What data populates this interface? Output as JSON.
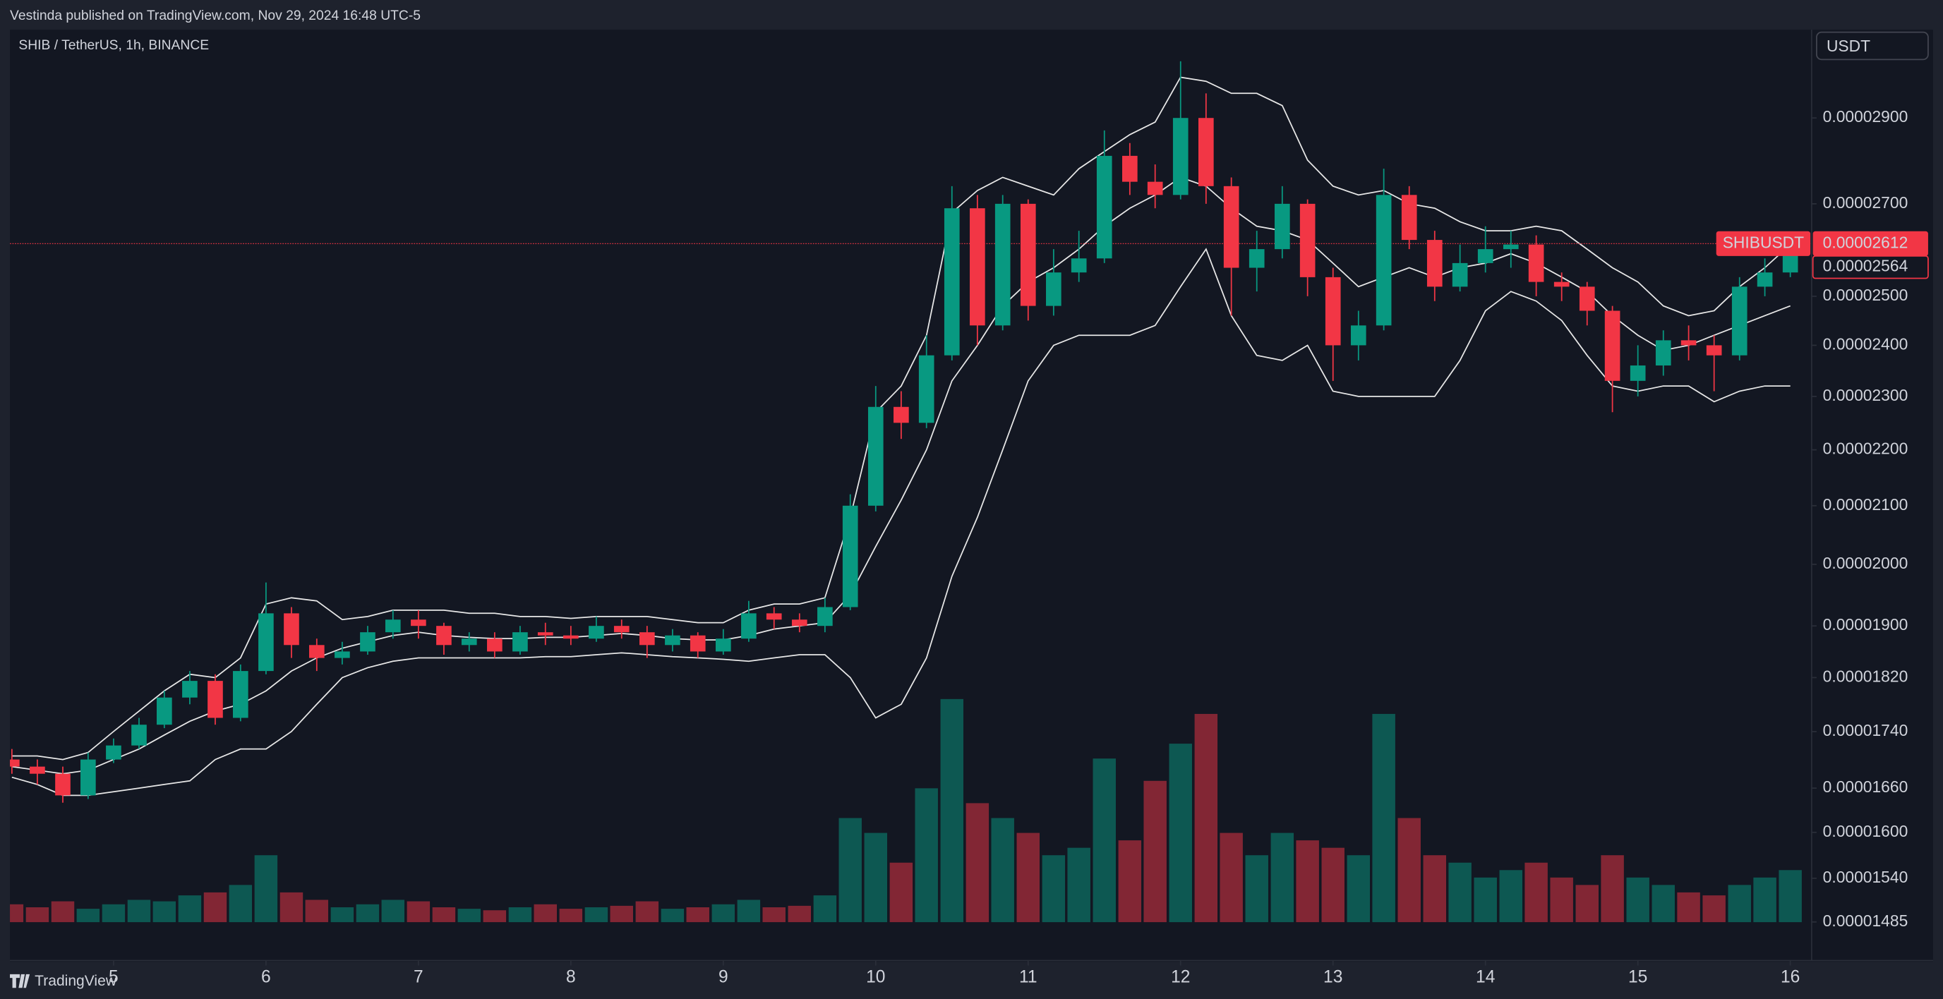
{
  "publisher": "Vestinda published on TradingView.com, Nov 29, 2024 16:48 UTC-5",
  "symbol_info": "SHIB / TetherUS, 1h, BINANCE",
  "currency": "USDT",
  "footer": "TradingView",
  "chart_data": {
    "type": "candlestick",
    "log_scale": true,
    "up_color": "#089981",
    "down_color": "#f23645",
    "band_color": "#e8e8e8",
    "symbol_label": "SHIBUSDT",
    "price_labels": [
      2.612e-05,
      2.564e-05
    ],
    "x": [
      4.333,
      4.5,
      4.667,
      4.833,
      5,
      5.167,
      5.333,
      5.5,
      5.667,
      5.833,
      6,
      6.167,
      6.333,
      6.5,
      6.667,
      6.833,
      7,
      7.167,
      7.333,
      7.5,
      7.667,
      7.833,
      8,
      8.167,
      8.333,
      8.5,
      8.667,
      8.833,
      9,
      9.167,
      9.333,
      9.5,
      9.667,
      9.833,
      10,
      10.167,
      10.333,
      10.5,
      10.667,
      10.833,
      11,
      11.167,
      11.333,
      11.5,
      11.667,
      11.833,
      12,
      12.167,
      12.333,
      12.5,
      12.667,
      12.833,
      13,
      13.167,
      13.333,
      13.5,
      13.667,
      13.833,
      14,
      14.167,
      14.333,
      14.5,
      14.667,
      14.833,
      15,
      15.167,
      15.333,
      15.5,
      15.667,
      15.833,
      16
    ],
    "open": [
      1.7e-05,
      1.69e-05,
      1.68e-05,
      1.65e-05,
      1.7e-05,
      1.72e-05,
      1.75e-05,
      1.79e-05,
      1.815e-05,
      1.76e-05,
      1.83e-05,
      1.92e-05,
      1.87e-05,
      1.85e-05,
      1.86e-05,
      1.89e-05,
      1.91e-05,
      1.9e-05,
      1.87e-05,
      1.88e-05,
      1.86e-05,
      1.89e-05,
      1.885e-05,
      1.88e-05,
      1.9e-05,
      1.89e-05,
      1.87e-05,
      1.885e-05,
      1.86e-05,
      1.88e-05,
      1.92e-05,
      1.91e-05,
      1.9e-05,
      1.93e-05,
      2.1e-05,
      2.28e-05,
      2.25e-05,
      2.38e-05,
      2.69e-05,
      2.44e-05,
      2.7e-05,
      2.48e-05,
      2.55e-05,
      2.58e-05,
      2.81e-05,
      2.75e-05,
      2.72e-05,
      2.9e-05,
      2.74e-05,
      2.56e-05,
      2.6e-05,
      2.7e-05,
      2.54e-05,
      2.4e-05,
      2.44e-05,
      2.72e-05,
      2.62e-05,
      2.52e-05,
      2.57e-05,
      2.6e-05,
      2.61e-05,
      2.53e-05,
      2.52e-05,
      2.47e-05,
      2.33e-05,
      2.36e-05,
      2.41e-05,
      2.4e-05,
      2.38e-05,
      2.52e-05,
      2.55e-05
    ],
    "high": [
      1.715e-05,
      1.7e-05,
      1.69e-05,
      1.71e-05,
      1.73e-05,
      1.76e-05,
      1.8e-05,
      1.83e-05,
      1.825e-05,
      1.84e-05,
      1.97e-05,
      1.93e-05,
      1.88e-05,
      1.875e-05,
      1.9e-05,
      1.925e-05,
      1.925e-05,
      1.905e-05,
      1.89e-05,
      1.89e-05,
      1.9e-05,
      1.905e-05,
      1.9e-05,
      1.915e-05,
      1.91e-05,
      1.9e-05,
      1.895e-05,
      1.89e-05,
      1.895e-05,
      1.94e-05,
      1.93e-05,
      1.92e-05,
      1.945e-05,
      2.12e-05,
      2.32e-05,
      2.31e-05,
      2.42e-05,
      2.74e-05,
      2.72e-05,
      2.72e-05,
      2.71e-05,
      2.6e-05,
      2.64e-05,
      2.87e-05,
      2.84e-05,
      2.79e-05,
      3.04e-05,
      2.96e-05,
      2.76e-05,
      2.64e-05,
      2.74e-05,
      2.71e-05,
      2.56e-05,
      2.47e-05,
      2.78e-05,
      2.74e-05,
      2.64e-05,
      2.61e-05,
      2.65e-05,
      2.64e-05,
      2.63e-05,
      2.55e-05,
      2.53e-05,
      2.48e-05,
      2.4e-05,
      2.43e-05,
      2.44e-05,
      2.42e-05,
      2.54e-05,
      2.58e-05,
      2.63e-05
    ],
    "low": [
      1.68e-05,
      1.665e-05,
      1.64e-05,
      1.645e-05,
      1.695e-05,
      1.715e-05,
      1.745e-05,
      1.78e-05,
      1.75e-05,
      1.755e-05,
      1.825e-05,
      1.85e-05,
      1.83e-05,
      1.84e-05,
      1.855e-05,
      1.88e-05,
      1.88e-05,
      1.855e-05,
      1.86e-05,
      1.85e-05,
      1.855e-05,
      1.87e-05,
      1.87e-05,
      1.875e-05,
      1.88e-05,
      1.85e-05,
      1.86e-05,
      1.85e-05,
      1.855e-05,
      1.875e-05,
      1.895e-05,
      1.89e-05,
      1.89e-05,
      1.925e-05,
      2.09e-05,
      2.22e-05,
      2.24e-05,
      2.37e-05,
      2.4e-05,
      2.43e-05,
      2.45e-05,
      2.46e-05,
      2.53e-05,
      2.57e-05,
      2.72e-05,
      2.69e-05,
      2.71e-05,
      2.7e-05,
      2.46e-05,
      2.51e-05,
      2.58e-05,
      2.5e-05,
      2.33e-05,
      2.37e-05,
      2.43e-05,
      2.6e-05,
      2.49e-05,
      2.51e-05,
      2.55e-05,
      2.56e-05,
      2.5e-05,
      2.49e-05,
      2.44e-05,
      2.27e-05,
      2.3e-05,
      2.34e-05,
      2.37e-05,
      2.31e-05,
      2.37e-05,
      2.5e-05,
      2.54e-05
    ],
    "close": [
      1.69e-05,
      1.68e-05,
      1.65e-05,
      1.7e-05,
      1.72e-05,
      1.75e-05,
      1.79e-05,
      1.815e-05,
      1.76e-05,
      1.83e-05,
      1.92e-05,
      1.87e-05,
      1.85e-05,
      1.86e-05,
      1.89e-05,
      1.91e-05,
      1.9e-05,
      1.87e-05,
      1.88e-05,
      1.86e-05,
      1.89e-05,
      1.885e-05,
      1.88e-05,
      1.9e-05,
      1.89e-05,
      1.87e-05,
      1.885e-05,
      1.86e-05,
      1.88e-05,
      1.92e-05,
      1.91e-05,
      1.9e-05,
      1.93e-05,
      2.1e-05,
      2.28e-05,
      2.25e-05,
      2.38e-05,
      2.69e-05,
      2.44e-05,
      2.7e-05,
      2.48e-05,
      2.55e-05,
      2.58e-05,
      2.81e-05,
      2.75e-05,
      2.72e-05,
      2.9e-05,
      2.74e-05,
      2.56e-05,
      2.6e-05,
      2.7e-05,
      2.54e-05,
      2.4e-05,
      2.44e-05,
      2.72e-05,
      2.62e-05,
      2.52e-05,
      2.57e-05,
      2.6e-05,
      2.61e-05,
      2.53e-05,
      2.52e-05,
      2.47e-05,
      2.33e-05,
      2.36e-05,
      2.41e-05,
      2.4e-05,
      2.38e-05,
      2.52e-05,
      2.55e-05,
      2.612e-05
    ],
    "volume": [
      12,
      10,
      14,
      9,
      12,
      15,
      14,
      18,
      20,
      25,
      45,
      20,
      15,
      10,
      12,
      15,
      14,
      10,
      9,
      8,
      10,
      12,
      9,
      10,
      11,
      14,
      9,
      10,
      12,
      15,
      10,
      11,
      18,
      70,
      60,
      40,
      90,
      150,
      80,
      70,
      60,
      45,
      50,
      110,
      55,
      95,
      120,
      140,
      60,
      45,
      60,
      55,
      50,
      45,
      140,
      70,
      45,
      40,
      30,
      35,
      40,
      30,
      25,
      45,
      30,
      25,
      20,
      18,
      25,
      30,
      35
    ],
    "bands": {
      "upper": [
        1.705e-05,
        1.705e-05,
        1.7e-05,
        1.71e-05,
        1.74e-05,
        1.77e-05,
        1.8e-05,
        1.825e-05,
        1.82e-05,
        1.85e-05,
        1.935e-05,
        1.945e-05,
        1.94e-05,
        1.91e-05,
        1.915e-05,
        1.925e-05,
        1.925e-05,
        1.925e-05,
        1.92e-05,
        1.92e-05,
        1.915e-05,
        1.915e-05,
        1.912e-05,
        1.915e-05,
        1.915e-05,
        1.915e-05,
        1.91e-05,
        1.905e-05,
        1.905e-05,
        1.925e-05,
        1.935e-05,
        1.935e-05,
        1.945e-05,
        2.08e-05,
        2.27e-05,
        2.32e-05,
        2.42e-05,
        2.68e-05,
        2.73e-05,
        2.76e-05,
        2.74e-05,
        2.72e-05,
        2.78e-05,
        2.82e-05,
        2.86e-05,
        2.89e-05,
        3e-05,
        2.99e-05,
        2.96e-05,
        2.96e-05,
        2.93e-05,
        2.8e-05,
        2.74e-05,
        2.72e-05,
        2.73e-05,
        2.7e-05,
        2.69e-05,
        2.66e-05,
        2.64e-05,
        2.64e-05,
        2.65e-05,
        2.64e-05,
        2.6e-05,
        2.56e-05,
        2.53e-05,
        2.48e-05,
        2.46e-05,
        2.47e-05,
        2.52e-05,
        2.56e-05,
        2.61e-05
      ],
      "basis": [
        1.69e-05,
        1.685e-05,
        1.68e-05,
        1.685e-05,
        1.7e-05,
        1.715e-05,
        1.735e-05,
        1.755e-05,
        1.77e-05,
        1.78e-05,
        1.8e-05,
        1.83e-05,
        1.85e-05,
        1.865e-05,
        1.875e-05,
        1.885e-05,
        1.89e-05,
        1.885e-05,
        1.882e-05,
        1.88e-05,
        1.88e-05,
        1.882e-05,
        1.882e-05,
        1.885e-05,
        1.888e-05,
        1.885e-05,
        1.88e-05,
        1.878e-05,
        1.878e-05,
        1.885e-05,
        1.895e-05,
        1.9e-05,
        1.905e-05,
        1.95e-05,
        2.03e-05,
        2.11e-05,
        2.2e-05,
        2.33e-05,
        2.4e-05,
        2.48e-05,
        2.53e-05,
        2.56e-05,
        2.6e-05,
        2.65e-05,
        2.69e-05,
        2.72e-05,
        2.76e-05,
        2.74e-05,
        2.69e-05,
        2.65e-05,
        2.64e-05,
        2.62e-05,
        2.57e-05,
        2.52e-05,
        2.54e-05,
        2.56e-05,
        2.54e-05,
        2.56e-05,
        2.57e-05,
        2.59e-05,
        2.57e-05,
        2.54e-05,
        2.51e-05,
        2.46e-05,
        2.42e-05,
        2.39e-05,
        2.4e-05,
        2.42e-05,
        2.44e-05,
        2.46e-05,
        2.48e-05
      ],
      "lower": [
        1.675e-05,
        1.665e-05,
        1.65e-05,
        1.65e-05,
        1.655e-05,
        1.66e-05,
        1.665e-05,
        1.67e-05,
        1.7e-05,
        1.715e-05,
        1.715e-05,
        1.74e-05,
        1.78e-05,
        1.82e-05,
        1.835e-05,
        1.845e-05,
        1.85e-05,
        1.85e-05,
        1.85e-05,
        1.85e-05,
        1.85e-05,
        1.852e-05,
        1.852e-05,
        1.855e-05,
        1.858e-05,
        1.855e-05,
        1.852e-05,
        1.85e-05,
        1.848e-05,
        1.845e-05,
        1.85e-05,
        1.855e-05,
        1.855e-05,
        1.82e-05,
        1.76e-05,
        1.78e-05,
        1.85e-05,
        1.98e-05,
        2.08e-05,
        2.2e-05,
        2.33e-05,
        2.4e-05,
        2.42e-05,
        2.42e-05,
        2.42e-05,
        2.44e-05,
        2.52e-05,
        2.6e-05,
        2.46e-05,
        2.38e-05,
        2.37e-05,
        2.4e-05,
        2.31e-05,
        2.3e-05,
        2.3e-05,
        2.3e-05,
        2.3e-05,
        2.37e-05,
        2.47e-05,
        2.51e-05,
        2.49e-05,
        2.45e-05,
        2.38e-05,
        2.32e-05,
        2.31e-05,
        2.32e-05,
        2.32e-05,
        2.29e-05,
        2.31e-05,
        2.32e-05,
        2.32e-05
      ]
    },
    "xlim": [
      4.32,
      16.14
    ],
    "xticks": [
      5,
      6,
      7,
      8,
      9,
      10,
      11,
      12,
      13,
      14,
      15,
      16
    ],
    "ylim": [
      1.438e-05,
      3.121e-05
    ],
    "yticks": [
      {
        "value": 2.9e-05,
        "label": "0.00002900"
      },
      {
        "value": 2.7e-05,
        "label": "0.00002700"
      },
      {
        "value": 2.5e-05,
        "label": "0.00002500"
      },
      {
        "value": 2.4e-05,
        "label": "0.00002400"
      },
      {
        "value": 2.3e-05,
        "label": "0.00002300"
      },
      {
        "value": 2.2e-05,
        "label": "0.00002200"
      },
      {
        "value": 2.1e-05,
        "label": "0.00002100"
      },
      {
        "value": 2e-05,
        "label": "0.00002000"
      },
      {
        "value": 1.9e-05,
        "label": "0.00001900"
      },
      {
        "value": 1.82e-05,
        "label": "0.00001820"
      },
      {
        "value": 1.74e-05,
        "label": "0.00001740"
      },
      {
        "value": 1.66e-05,
        "label": "0.00001660"
      },
      {
        "value": 1.6e-05,
        "label": "0.00001600"
      },
      {
        "value": 1.54e-05,
        "label": "0.00001540"
      },
      {
        "value": 1.485e-05,
        "label": "0.00001485"
      }
    ]
  }
}
